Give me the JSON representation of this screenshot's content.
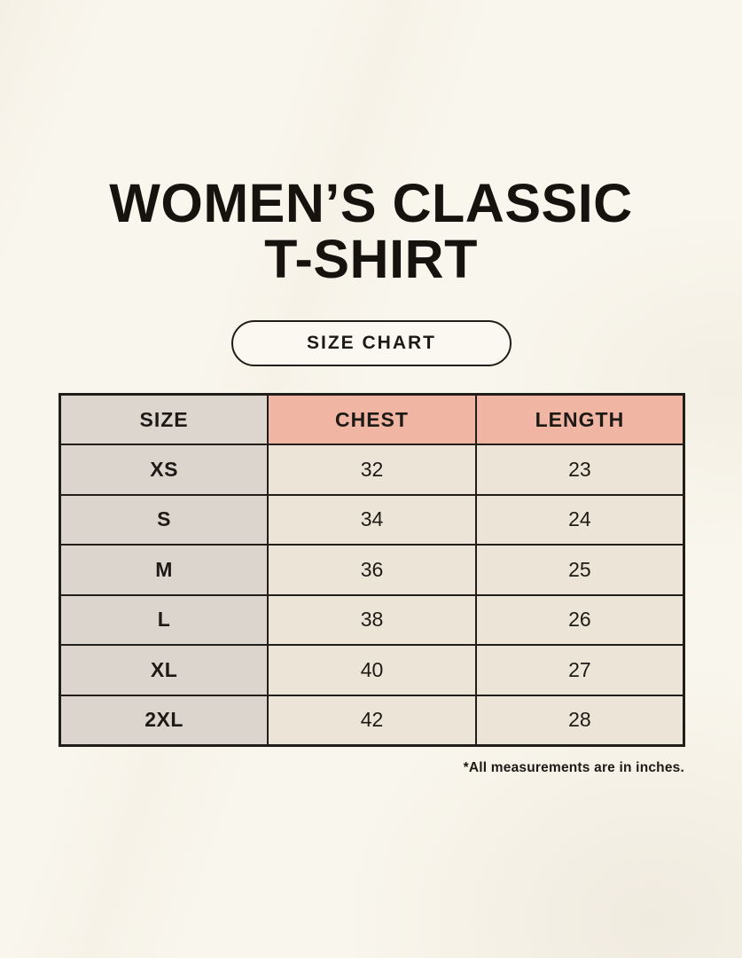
{
  "title": {
    "line1": "WOMEN’S CLASSIC",
    "line2": "T-SHIRT"
  },
  "size_chart_button": {
    "label": "SIZE CHART"
  },
  "footnote": "*All measurements are in inches.",
  "colors": {
    "page_background": "#f9f6ed",
    "header_size_bg": "#ddd6cf",
    "header_measure_bg": "#f0b5a3",
    "size_column_bg": "#dcd5ce",
    "data_cell_bg": "#ece5d7",
    "table_border": "#211d18",
    "text_ink": "#1d1a16"
  },
  "chart_data": {
    "type": "table",
    "title": "WOMEN’S CLASSIC T-SHIRT — SIZE CHART",
    "columns": [
      "SIZE",
      "CHEST",
      "LENGTH"
    ],
    "rows": [
      [
        "XS",
        "32",
        "23"
      ],
      [
        "S",
        "34",
        "24"
      ],
      [
        "M",
        "36",
        "25"
      ],
      [
        "L",
        "38",
        "26"
      ],
      [
        "XL",
        "40",
        "27"
      ],
      [
        "2XL",
        "42",
        "28"
      ]
    ],
    "units": "inches",
    "note": "*All measurements are in inches."
  }
}
